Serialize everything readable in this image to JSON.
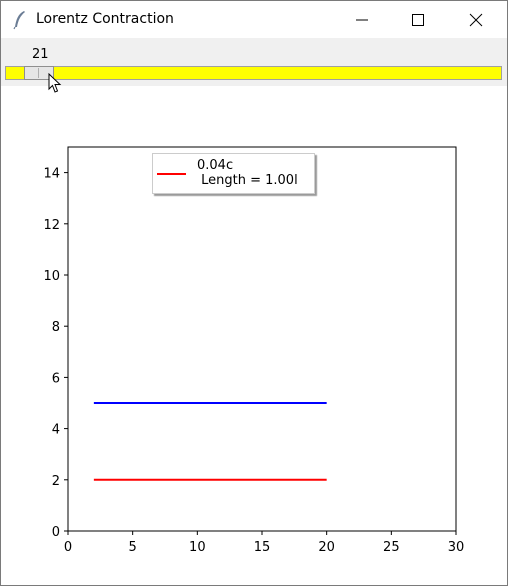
{
  "window": {
    "title": "Lorentz Contraction",
    "icon": "feather-icon",
    "controls": [
      "minimize-icon",
      "maximize-icon",
      "close-icon"
    ]
  },
  "slider": {
    "value_label": "21",
    "value": 21,
    "trough_color": "#ffff00"
  },
  "legend": {
    "line_color": "#ff0000",
    "speed_label": "0.04c",
    "length_label": " Length = 1.00l"
  },
  "chart_data": {
    "type": "line",
    "xlim": [
      0,
      30
    ],
    "ylim": [
      0,
      15
    ],
    "xticks": [
      0,
      5,
      10,
      15,
      20,
      25,
      30
    ],
    "yticks": [
      0,
      2,
      4,
      6,
      8,
      10,
      12,
      14
    ],
    "grid": false,
    "legend_position": "top-center",
    "series": [
      {
        "name": "0.04c\n Length = 1.00l",
        "color": "#ff0000",
        "x": [
          2,
          20
        ],
        "y": [
          2,
          2
        ]
      },
      {
        "color": "#0000ff",
        "x": [
          2,
          20
        ],
        "y": [
          5,
          5
        ]
      }
    ]
  }
}
